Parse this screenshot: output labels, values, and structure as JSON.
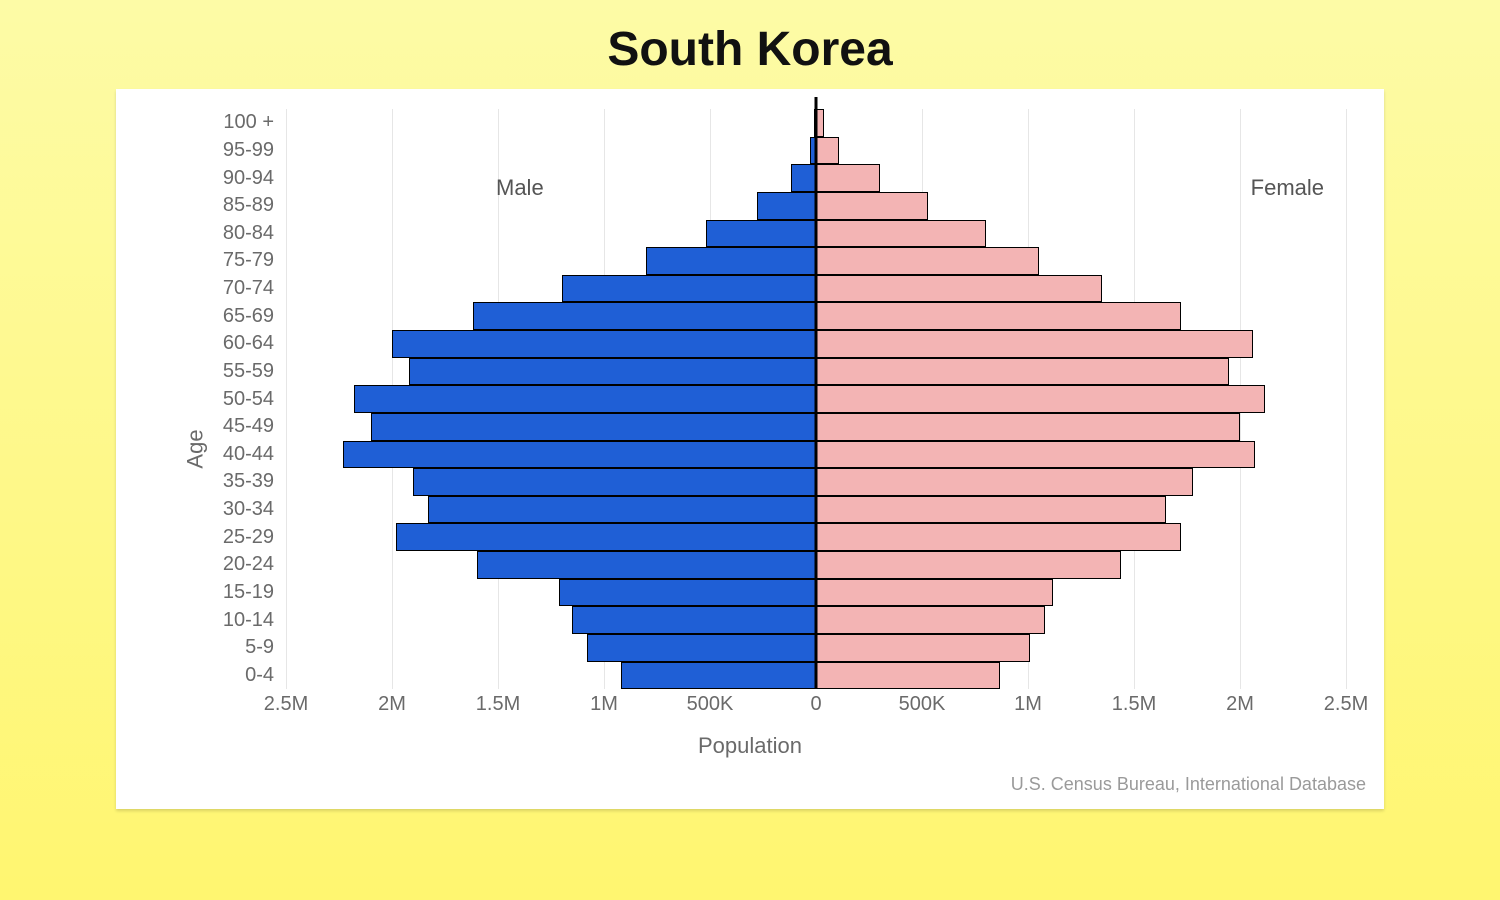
{
  "title": "South Korea",
  "chart": {
    "type": "population-pyramid",
    "y_axis_label": "Age",
    "x_axis_label": "Population",
    "credit": "U.S. Census Bureau, International Database",
    "background_color": "#ffffff",
    "grid_color": "#e6e6e6",
    "axis_text_color": "#6a6a6a",
    "label_fontsize": 22,
    "tick_fontsize": 20,
    "x_axis": {
      "domain": 2500000,
      "ticks": [
        {
          "value": -2500000,
          "label": "2.5M"
        },
        {
          "value": -2000000,
          "label": "2M"
        },
        {
          "value": -1500000,
          "label": "1.5M"
        },
        {
          "value": -1000000,
          "label": "1M"
        },
        {
          "value": -500000,
          "label": "500K"
        },
        {
          "value": 0,
          "label": "0"
        },
        {
          "value": 500000,
          "label": "500K"
        },
        {
          "value": 1000000,
          "label": "1M"
        },
        {
          "value": 1500000,
          "label": "1.5M"
        },
        {
          "value": 2000000,
          "label": "2M"
        },
        {
          "value": 2500000,
          "label": "2.5M"
        }
      ]
    },
    "series": {
      "male": {
        "label": "Male",
        "color": "#1f5fd6"
      },
      "female": {
        "label": "Female",
        "color": "#f3b4b4"
      }
    },
    "age_groups": [
      {
        "label": "100 +",
        "male": 5000,
        "female": 40000
      },
      {
        "label": "95-99",
        "male": 30000,
        "female": 110000
      },
      {
        "label": "90-94",
        "male": 120000,
        "female": 300000
      },
      {
        "label": "85-89",
        "male": 280000,
        "female": 530000
      },
      {
        "label": "80-84",
        "male": 520000,
        "female": 800000
      },
      {
        "label": "75-79",
        "male": 800000,
        "female": 1050000
      },
      {
        "label": "70-74",
        "male": 1200000,
        "female": 1350000
      },
      {
        "label": "65-69",
        "male": 1620000,
        "female": 1720000
      },
      {
        "label": "60-64",
        "male": 2000000,
        "female": 2060000
      },
      {
        "label": "55-59",
        "male": 1920000,
        "female": 1950000
      },
      {
        "label": "50-54",
        "male": 2180000,
        "female": 2120000
      },
      {
        "label": "45-49",
        "male": 2100000,
        "female": 2000000
      },
      {
        "label": "40-44",
        "male": 2230000,
        "female": 2070000
      },
      {
        "label": "35-39",
        "male": 1900000,
        "female": 1780000
      },
      {
        "label": "30-34",
        "male": 1830000,
        "female": 1650000
      },
      {
        "label": "25-29",
        "male": 1980000,
        "female": 1720000
      },
      {
        "label": "20-24",
        "male": 1600000,
        "female": 1440000
      },
      {
        "label": "15-19",
        "male": 1210000,
        "female": 1120000
      },
      {
        "label": "10-14",
        "male": 1150000,
        "female": 1080000
      },
      {
        "label": "5-9",
        "male": 1080000,
        "female": 1010000
      },
      {
        "label": "0-4",
        "male": 920000,
        "female": 870000
      }
    ]
  }
}
